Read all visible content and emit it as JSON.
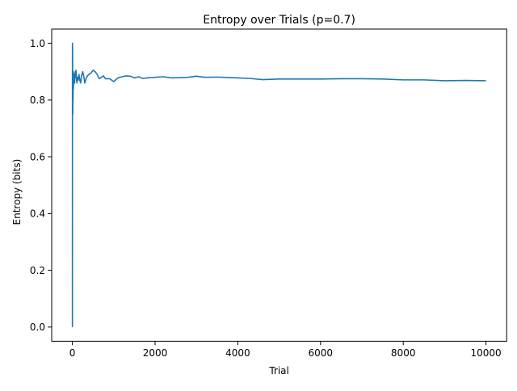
{
  "chart_data": {
    "type": "line",
    "title": "Entropy over Trials (p=0.7)",
    "xlabel": "Trial",
    "ylabel": "Entropy (bits)",
    "xlim": [
      -500,
      10500
    ],
    "ylim": [
      -0.05,
      1.05
    ],
    "xticks": [
      0,
      2000,
      4000,
      6000,
      8000,
      10000
    ],
    "yticks": [
      0.0,
      0.2,
      0.4,
      0.6,
      0.8,
      1.0
    ],
    "xtick_labels": [
      "0",
      "2000",
      "4000",
      "6000",
      "8000",
      "10000"
    ],
    "ytick_labels": [
      "0.0",
      "0.2",
      "0.4",
      "0.6",
      "0.8",
      "1.0"
    ],
    "grid": false,
    "series": [
      {
        "color": "#1f77b4",
        "x": [
          1,
          2,
          3,
          4,
          5,
          6,
          8,
          10,
          12,
          15,
          18,
          22,
          26,
          30,
          35,
          40,
          45,
          50,
          55,
          60,
          70,
          80,
          90,
          100,
          110,
          120,
          140,
          160,
          180,
          200,
          220,
          250,
          280,
          300,
          330,
          360,
          400,
          450,
          500,
          550,
          600,
          650,
          700,
          750,
          800,
          900,
          1000,
          1100,
          1200,
          1300,
          1400,
          1500,
          1600,
          1700,
          1800,
          1900,
          2000,
          2200,
          2400,
          2600,
          2800,
          3000,
          3200,
          3500,
          3800,
          4000,
          4300,
          4600,
          5000,
          5500,
          6000,
          6500,
          7000,
          7500,
          8000,
          8500,
          9000,
          9500,
          10000
        ],
        "y": [
          0.0,
          1.0,
          0.92,
          0.99,
          0.97,
          0.81,
          0.76,
          0.75,
          0.86,
          0.8,
          0.85,
          0.9,
          0.84,
          0.88,
          0.86,
          0.89,
          0.87,
          0.88,
          0.86,
          0.89,
          0.9,
          0.88,
          0.905,
          0.87,
          0.86,
          0.88,
          0.87,
          0.89,
          0.87,
          0.86,
          0.885,
          0.9,
          0.88,
          0.86,
          0.875,
          0.885,
          0.89,
          0.895,
          0.905,
          0.9,
          0.89,
          0.875,
          0.88,
          0.885,
          0.875,
          0.875,
          0.865,
          0.878,
          0.882,
          0.885,
          0.884,
          0.878,
          0.882,
          0.876,
          0.878,
          0.879,
          0.88,
          0.882,
          0.878,
          0.879,
          0.88,
          0.884,
          0.88,
          0.881,
          0.879,
          0.878,
          0.876,
          0.872,
          0.874,
          0.874,
          0.874,
          0.875,
          0.875,
          0.874,
          0.871,
          0.871,
          0.868,
          0.869,
          0.868
        ]
      }
    ]
  }
}
